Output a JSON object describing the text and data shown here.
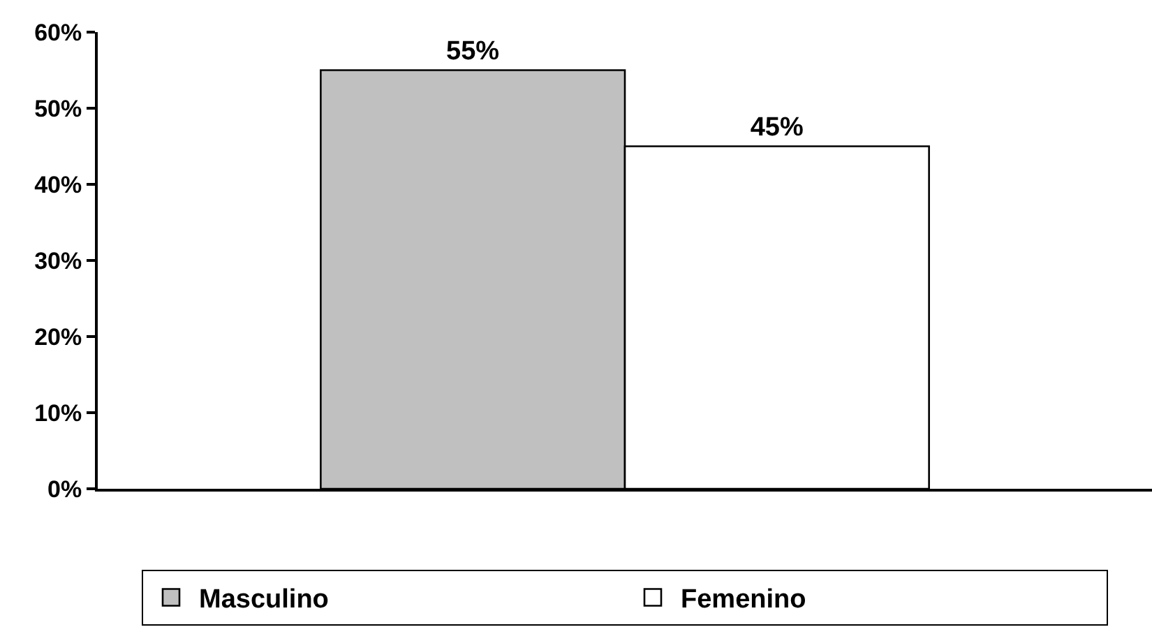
{
  "chart_data": {
    "type": "bar",
    "categories": [
      null
    ],
    "series": [
      {
        "name": "Masculino",
        "color": "#c0c0c0",
        "values": [
          55
        ],
        "value_labels": [
          "55%"
        ]
      },
      {
        "name": "Femenino",
        "color": "#ffffff",
        "values": [
          45
        ],
        "value_labels": [
          "45%"
        ]
      }
    ],
    "ylim": [
      0,
      60
    ],
    "yticks": [
      {
        "value": 0,
        "label": "0%"
      },
      {
        "value": 10,
        "label": "10%"
      },
      {
        "value": 20,
        "label": "20%"
      },
      {
        "value": 30,
        "label": "30%"
      },
      {
        "value": 40,
        "label": "40%"
      },
      {
        "value": 50,
        "label": "50%"
      },
      {
        "value": 60,
        "label": "60%"
      }
    ],
    "grid": false,
    "legend": "bottom"
  }
}
